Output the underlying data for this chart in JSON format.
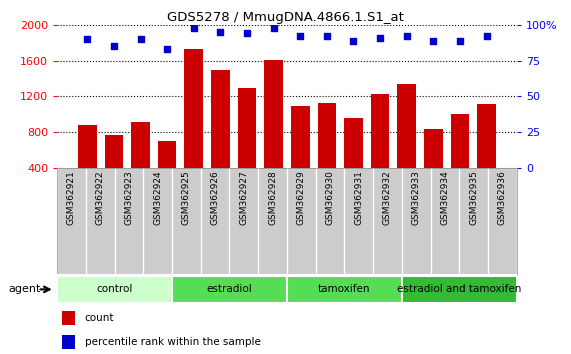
{
  "title": "GDS5278 / MmugDNA.4866.1.S1_at",
  "samples": [
    "GSM362921",
    "GSM362922",
    "GSM362923",
    "GSM362924",
    "GSM362925",
    "GSM362926",
    "GSM362927",
    "GSM362928",
    "GSM362929",
    "GSM362930",
    "GSM362931",
    "GSM362932",
    "GSM362933",
    "GSM362934",
    "GSM362935",
    "GSM362936"
  ],
  "counts": [
    880,
    770,
    920,
    700,
    1730,
    1490,
    1290,
    1610,
    1090,
    1130,
    960,
    1230,
    1340,
    840,
    1000,
    1120
  ],
  "percentiles": [
    90,
    85,
    90,
    83,
    98,
    95,
    94,
    98,
    92,
    92,
    89,
    91,
    92,
    89,
    89,
    92
  ],
  "bar_color": "#cc0000",
  "dot_color": "#0000cc",
  "ylim_left": [
    400,
    2000
  ],
  "ylim_right": [
    0,
    100
  ],
  "yticks_left": [
    400,
    800,
    1200,
    1600,
    2000
  ],
  "yticks_right": [
    0,
    25,
    50,
    75,
    100
  ],
  "groups": [
    {
      "label": "control",
      "start": 0,
      "end": 4,
      "color": "#ccffcc"
    },
    {
      "label": "estradiol",
      "start": 4,
      "end": 8,
      "color": "#55dd55"
    },
    {
      "label": "tamoxifen",
      "start": 8,
      "end": 12,
      "color": "#55dd55"
    },
    {
      "label": "estradiol and tamoxifen",
      "start": 12,
      "end": 16,
      "color": "#33bb33"
    }
  ],
  "agent_label": "agent",
  "legend_count_label": "count",
  "legend_pct_label": "percentile rank within the sample",
  "tick_area_color": "#cccccc",
  "group_border_color": "white"
}
